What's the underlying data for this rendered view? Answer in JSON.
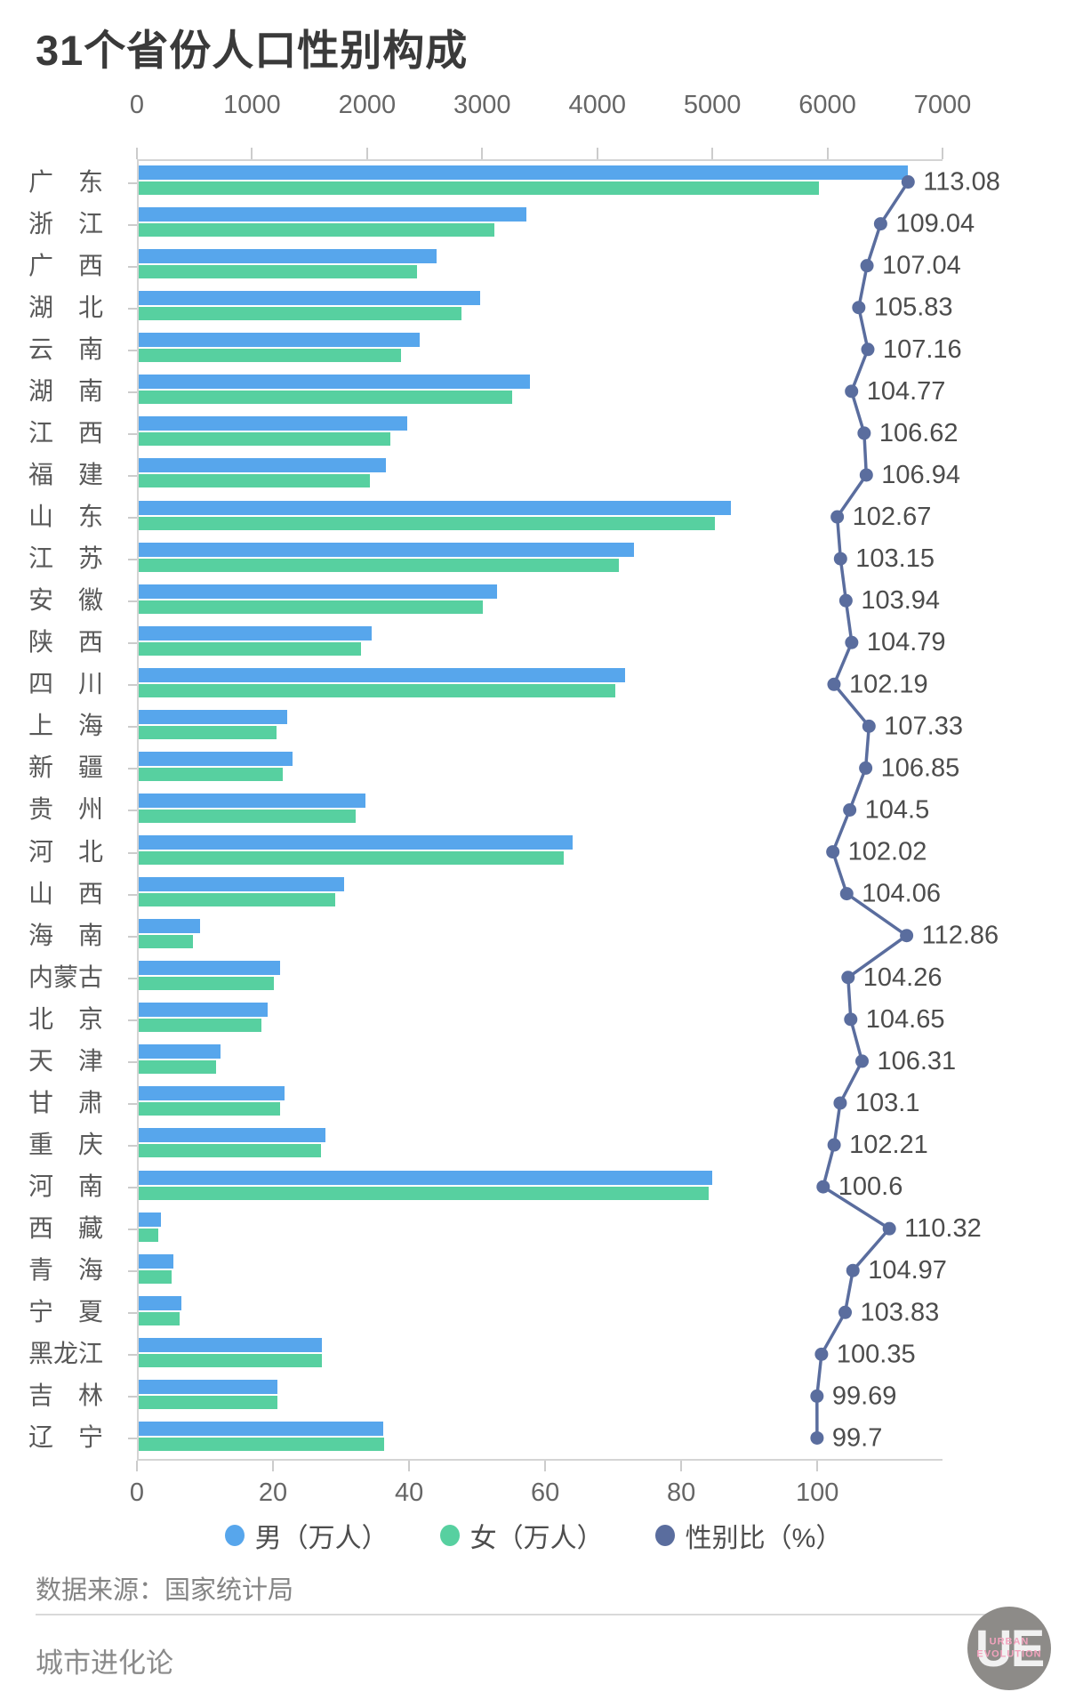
{
  "title": "31个省份人口性别构成",
  "source": "数据来源：国家统计局",
  "footer": {
    "brand": "城市进化论",
    "logo_text": "UE",
    "logo_caption": "URBAN EVOLUTION"
  },
  "colors": {
    "male_bar": "#57a6ec",
    "female_bar": "#57d0a0",
    "ratio_line": "#5a6d9e",
    "axis": "#cccccc",
    "axis_label": "#666666",
    "category_label": "#595959",
    "ratio_value_label": "#4c4c4c"
  },
  "chart_data": {
    "type": "bar",
    "orientation": "horizontal",
    "title": "31个省份人口性别构成",
    "grid": false,
    "legend_position": "bottom",
    "categories": [
      "广东",
      "浙江",
      "广西",
      "湖北",
      "云南",
      "湖南",
      "江西",
      "福建",
      "山东",
      "江苏",
      "安徽",
      "陕西",
      "四川",
      "上海",
      "新疆",
      "贵州",
      "河北",
      "山西",
      "海南",
      "内蒙古",
      "北京",
      "天津",
      "甘肃",
      "重庆",
      "河南",
      "西藏",
      "青海",
      "宁夏",
      "黑龙江",
      "吉林",
      "辽宁"
    ],
    "series": [
      {
        "name": "男（万人）",
        "type": "bar",
        "color": "#57a6ec",
        "values": [
          6687,
          3368,
          2592,
          2970,
          2442,
          3400,
          2333,
          2147,
          5143,
          4304,
          3111,
          2022,
          4228,
          1287,
          1335,
          1970,
          3768,
          1781,
          534,
          1228,
          1120,
          714,
          1270,
          1620,
          4983,
          191,
          303,
          367,
          1595,
          1202,
          2126
        ]
      },
      {
        "name": "女（万人）",
        "type": "bar",
        "color": "#57d0a0",
        "values": [
          5914,
          3089,
          2421,
          2806,
          2279,
          3244,
          2186,
          2007,
          5010,
          4171,
          2992,
          1930,
          4139,
          1200,
          1250,
          1886,
          3693,
          1711,
          474,
          1177,
          1070,
          672,
          1232,
          1585,
          4953,
          173,
          289,
          353,
          1590,
          1206,
          2133
        ]
      },
      {
        "name": "性别比（%）",
        "type": "line",
        "color": "#5a6d9e",
        "values": [
          113.08,
          109.04,
          107.04,
          105.83,
          107.16,
          104.77,
          106.62,
          106.94,
          102.67,
          103.15,
          103.94,
          104.79,
          102.19,
          107.33,
          106.85,
          104.5,
          102.02,
          104.06,
          112.86,
          104.26,
          104.65,
          106.31,
          103.1,
          102.21,
          100.6,
          110.32,
          104.97,
          103.83,
          100.35,
          99.69,
          99.7
        ]
      }
    ],
    "x_axis_top": {
      "label": "万人",
      "range": [
        0,
        7000
      ],
      "ticks": [
        0,
        1000,
        2000,
        3000,
        4000,
        5000,
        6000,
        7000
      ]
    },
    "x_axis_bottom": {
      "label": "性别比（%）",
      "range": [
        0,
        118.4
      ],
      "ticks": [
        0,
        20,
        40,
        60,
        80,
        100
      ]
    }
  }
}
